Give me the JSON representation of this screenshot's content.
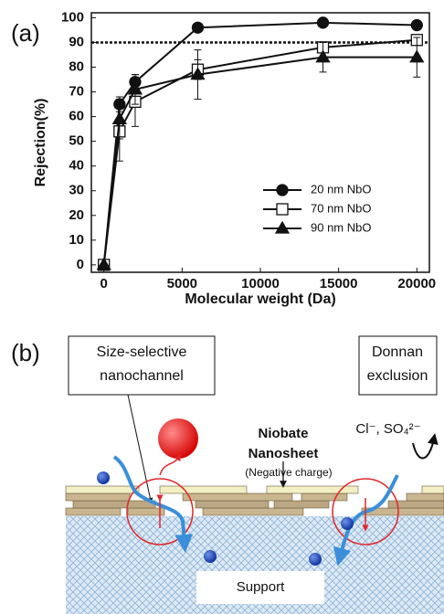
{
  "chart_data": {
    "type": "line",
    "panel_label": "(a)",
    "x_label": "Molecular weight (Da)",
    "y_label": "Rejection(%)",
    "x": [
      0,
      1000,
      2000,
      6000,
      14000,
      20000
    ],
    "series": [
      {
        "name": "20 nm NbO",
        "color": "#111111",
        "marker": "circle",
        "values": [
          0,
          65,
          74,
          96,
          98,
          97
        ],
        "errors": [
          0,
          3,
          3,
          1,
          1,
          1
        ]
      },
      {
        "name": "70 nm NbO",
        "color": "#111111",
        "marker": "square",
        "values": [
          0,
          54,
          66,
          79,
          88,
          91
        ],
        "errors": [
          0,
          12,
          10,
          4,
          2,
          2
        ]
      },
      {
        "name": "90 nm NbO",
        "color": "#111111",
        "marker": "triangle",
        "values": [
          0,
          59,
          71,
          77,
          84,
          84
        ],
        "errors": [
          0,
          8,
          6,
          10,
          6,
          8
        ]
      }
    ],
    "hline": 90,
    "xlim": [
      -800,
      20800
    ],
    "xticks": [
      0,
      5000,
      10000,
      15000,
      20000
    ],
    "ylim": [
      -3,
      102
    ],
    "yticks": [
      0,
      10,
      20,
      30,
      40,
      50,
      60,
      70,
      80,
      90,
      100
    ]
  },
  "panel_b": {
    "label": "(b)",
    "box_left": [
      "Size-selective",
      "nanochannel"
    ],
    "box_right": [
      "Donnan",
      "exclusion"
    ],
    "sheet_label": [
      "Niobate",
      "Nanosheet"
    ],
    "charge": "(Negative charge)",
    "ions": "Cl⁻, SO₄²⁻",
    "support": "Support"
  }
}
